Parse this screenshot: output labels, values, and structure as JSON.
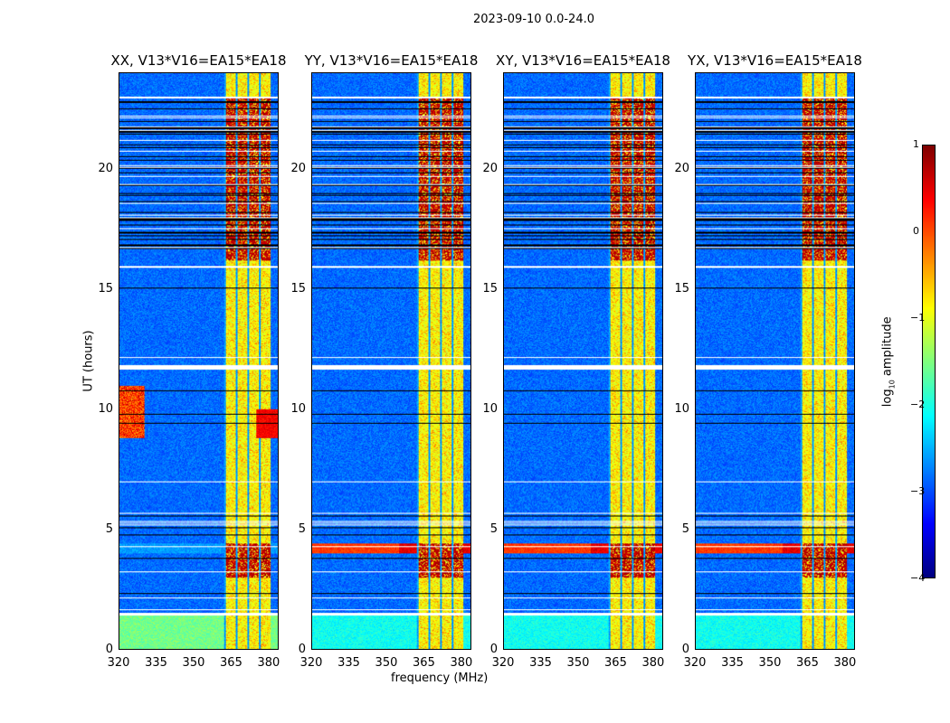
{
  "figure": {
    "suptitle": "2023-09-10 0.0-24.0",
    "xlabel": "frequency (MHz)",
    "ylabel": "UT (hours)"
  },
  "colorbar": {
    "label_prefix": "log",
    "label_sub": "10",
    "label_suffix": " amplitude",
    "ticks": [
      "1",
      "0",
      "−1",
      "−2",
      "−3",
      "−4"
    ],
    "tick_values": [
      1,
      0,
      -1,
      -2,
      -3,
      -4
    ],
    "range": [
      -4,
      1
    ],
    "colormap": "jet"
  },
  "chart_data": {
    "type": "heatmap",
    "xlabel": "frequency (MHz)",
    "ylabel": "UT (hours)",
    "xlim": [
      320,
      384
    ],
    "ylim": [
      0,
      24
    ],
    "xticks": [
      "320",
      "335",
      "350",
      "365",
      "380"
    ],
    "xtick_values": [
      320,
      335,
      350,
      365,
      380
    ],
    "yticks": [
      "0",
      "5",
      "10",
      "15",
      "20"
    ],
    "ytick_values": [
      0,
      5,
      10,
      15,
      20
    ],
    "value_label": "log10 amplitude",
    "vrange": [
      -4,
      1
    ],
    "panels": [
      {
        "title": "XX, V13*V16=EA15*EA18",
        "strong_lowfreq_rfi_hours": [
          8.8,
          11.0
        ]
      },
      {
        "title": "YY, V13*V16=EA15*EA18"
      },
      {
        "title": "XY, V13*V16=EA15*EA18"
      },
      {
        "title": "YX, V13*V16=EA15*EA18"
      }
    ],
    "features": {
      "rfi_band_mhz": [
        362,
        381
      ],
      "rfi_band_level": -1,
      "background_level": -3,
      "high_rfi_hours": [
        [
          3.0,
          4.4
        ],
        [
          16.2,
          23.0
        ]
      ],
      "flagged_gap_hours": [
        1.45,
        11.75,
        15.95,
        23.0
      ]
    }
  }
}
